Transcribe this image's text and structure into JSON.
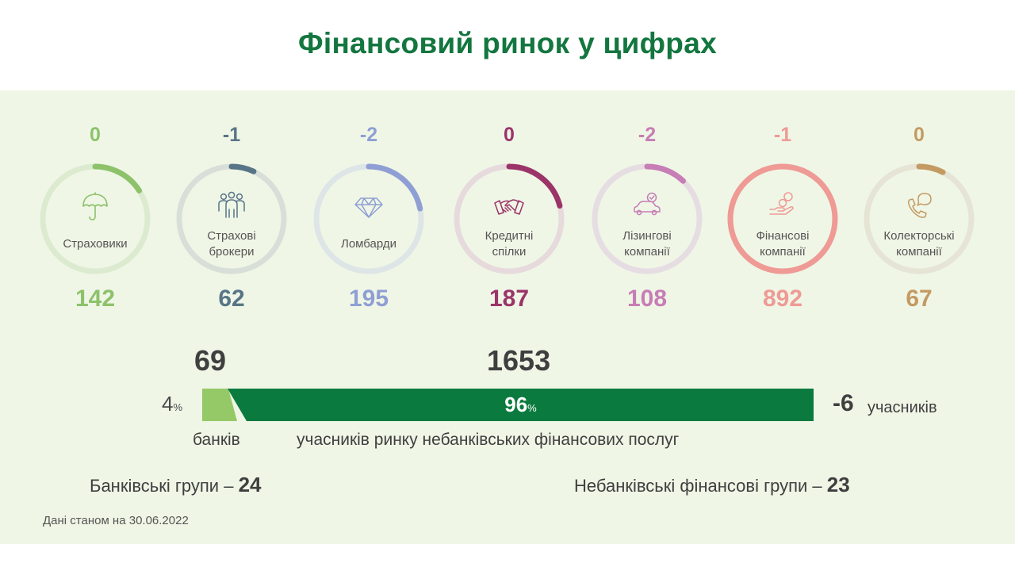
{
  "title": "Фінансовий ринок у цифрах",
  "colors": {
    "title": "#13763f",
    "bank": "#95c967",
    "nonbank": "#0b7a3e",
    "panel_bg": "#eff6e6"
  },
  "chart_data": {
    "type": "bar",
    "categories": [
      {
        "label_lines": [
          "Страховики"
        ],
        "count": 142,
        "change": "0",
        "color": "#8dc26b",
        "track": "#dcebd0",
        "icon": "umbrella-icon"
      },
      {
        "label_lines": [
          "Страхові",
          "брокери"
        ],
        "count": 62,
        "change": "-1",
        "color": "#587587",
        "track": "#d8dfd9",
        "icon": "people-group-icon"
      },
      {
        "label_lines": [
          "Ломбарди"
        ],
        "count": 195,
        "change": "-2",
        "color": "#8f9fd4",
        "track": "#dee5e6",
        "icon": "diamond-icon"
      },
      {
        "label_lines": [
          "Кредитні",
          "спілки"
        ],
        "count": 187,
        "change": "0",
        "color": "#9b3469",
        "track": "#e6dadc",
        "icon": "handshake-icon"
      },
      {
        "label_lines": [
          "Лізингові",
          "компанії"
        ],
        "count": 108,
        "change": "-2",
        "color": "#c77db5",
        "track": "#e6dde3",
        "icon": "car-icon"
      },
      {
        "label_lines": [
          "Фінансові",
          "компанії"
        ],
        "count": 892,
        "change": "-1",
        "color": "#ef9a95",
        "track": "#e8dcd6",
        "icon": "coins-hand-icon"
      },
      {
        "label_lines": [
          "Колекторські",
          "компанії"
        ],
        "count": 67,
        "change": "0",
        "color": "#c49a62",
        "track": "#e6e4d4",
        "icon": "phone-chat-icon"
      }
    ],
    "banks": {
      "count": "69",
      "percent": "4",
      "label": "банків"
    },
    "nonbank": {
      "count": "1653",
      "percent": "96",
      "label": "учасників ринку небанківських фінансових послуг"
    },
    "total_change": {
      "value": "-6",
      "label": "учасників"
    },
    "percent_unit": "%"
  },
  "groups": {
    "banking": {
      "label": "Банківські групи –",
      "value": "24"
    },
    "nonbank": {
      "label": "Небанківські фінансові групи –",
      "value": "23"
    }
  },
  "footnote": "Дані станом на 30.06.2022"
}
